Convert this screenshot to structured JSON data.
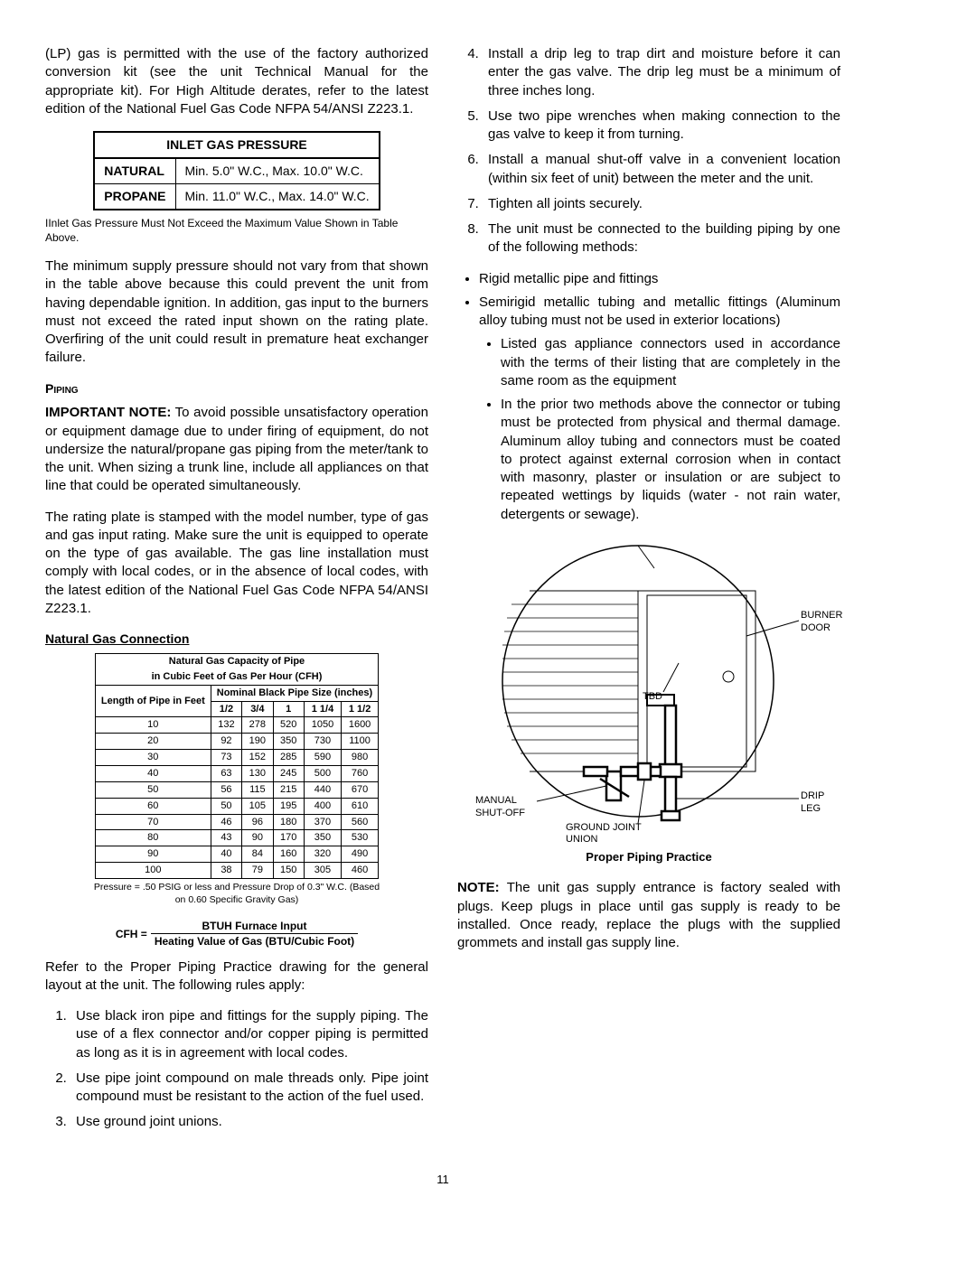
{
  "left": {
    "p1": "(LP) gas is permitted with the use of the factory authorized conversion kit (see the unit Technical Manual for the appropriate kit). For High Altitude derates, refer to the latest edition of the National Fuel Gas Code NFPA 54/ANSI Z223.1.",
    "pressure_table": {
      "title": "INLET GAS PRESSURE",
      "rows": [
        [
          "NATURAL",
          "Min.  5.0\" W.C., Max. 10.0\" W.C."
        ],
        [
          "PROPANE",
          "Min. 11.0\" W.C., Max. 14.0\" W.C."
        ]
      ]
    },
    "note1": "IInlet Gas Pressure Must Not Exceed the Maximum Value Shown in Table Above.",
    "p2": "The minimum supply pressure should not vary from that shown in the table above because this could prevent the unit from having dependable ignition. In addition, gas input to the burners must not exceed the rated input shown on the rating plate. Overfiring of the unit could result in premature heat exchanger failure.",
    "piping_title": "Piping",
    "important_label": "IMPORTANT NOTE:",
    "p3": " To avoid possible unsatisfactory operation or equipment damage due to under firing of equipment, do not undersize the natural/propane gas piping from the meter/tank to the unit. When sizing a trunk line, include all appliances on that line that could be operated simultaneously.",
    "p4": "The rating plate is stamped with the model number, type of gas and gas input rating. Make sure the unit is equipped to operate on the type of gas available.  The gas line installation must comply with local codes, or in the absence of local codes, with the latest edition of the National Fuel Gas Code NFPA 54/ANSI Z223.1.",
    "ngc_title": "Natural Gas Connection",
    "gas_table": {
      "head1": "Natural Gas Capacity of Pipe",
      "head2": "in Cubic Feet of Gas Per Hour (CFH)",
      "length_label": "Length of Pipe in Feet",
      "nominal_label": "Nominal Black  Pipe Size (inches)",
      "sizes": [
        "1/2",
        "3/4",
        "1",
        "1   1/4",
        "1   1/2"
      ],
      "rows": [
        [
          "10",
          "132",
          "278",
          "520",
          "1050",
          "1600"
        ],
        [
          "20",
          "92",
          "190",
          "350",
          "730",
          "1100"
        ],
        [
          "30",
          "73",
          "152",
          "285",
          "590",
          "980"
        ],
        [
          "40",
          "63",
          "130",
          "245",
          "500",
          "760"
        ],
        [
          "50",
          "56",
          "115",
          "215",
          "440",
          "670"
        ],
        [
          "60",
          "50",
          "105",
          "195",
          "400",
          "610"
        ],
        [
          "70",
          "46",
          "96",
          "180",
          "370",
          "560"
        ],
        [
          "80",
          "43",
          "90",
          "170",
          "350",
          "530"
        ],
        [
          "90",
          "40",
          "84",
          "160",
          "320",
          "490"
        ],
        [
          "100",
          "38",
          "79",
          "150",
          "305",
          "460"
        ]
      ],
      "foot": "Pressure = .50 PSIG or less and Pressure Drop of 0.3\" W.C. (Based on 0.60 Specific Gravity Gas)"
    },
    "formula": {
      "lhs": "CFH =",
      "num": "BTUH Furnace Input",
      "den": "Heating Value of Gas (BTU/Cubic Foot)"
    },
    "p5": "Refer to the Proper Piping Practice drawing for the general layout at the unit. The following rules apply:",
    "rules": [
      "Use black iron pipe and fittings for the supply piping. The use of a flex connector and/or copper piping is permitted  as long as it is in agreement with local codes.",
      "Use pipe joint compound on male threads only. Pipe joint compound must be resistant to the action of the fuel used.",
      "Use ground joint unions."
    ]
  },
  "right": {
    "rules_cont": [
      "Install a drip leg to trap dirt and moisture before it can enter the gas valve. The drip leg must be a minimum of three inches long.",
      "Use two pipe wrenches when making connection to the gas valve to keep it from turning.",
      "Install a manual shut-off valve in a convenient location (within six feet of unit) between the meter and the unit.",
      "Tighten all joints securely.",
      "The unit must be connected to the building piping by one of the following methods:"
    ],
    "bullets": [
      "Rigid metallic pipe and fittings",
      "Semirigid metallic tubing and metallic fittings (Aluminum alloy tubing must not be used in exterior locations)"
    ],
    "subbullets": [
      "Listed gas appliance connectors used in accordance with the terms of their listing that are completely in the same room as the equipment",
      "In the prior two methods above the connector or tubing must be protected from physical and thermal damage. Aluminum alloy tubing and connectors must be coated to protect against external corrosion when in contact with masonry, plaster or insulation or are subject to repeated wettings by liquids (water - not rain water, detergents or sewage)."
    ],
    "diagram": {
      "burner_door": "BURNER DOOR",
      "tbd": "TBD",
      "manual": "MANUAL SHUT-OFF",
      "ground": "GROUND JOINT UNION",
      "drip": "DRIP LEG",
      "caption": "Proper Piping Practice"
    },
    "note_label": "NOTE:",
    "note_body": "  The unit gas supply entrance is factory sealed with plugs. Keep plugs in place until gas supply is ready to be installed.  Once ready, replace the plugs with the supplied grommets and install gas supply line."
  },
  "pageno": "11"
}
